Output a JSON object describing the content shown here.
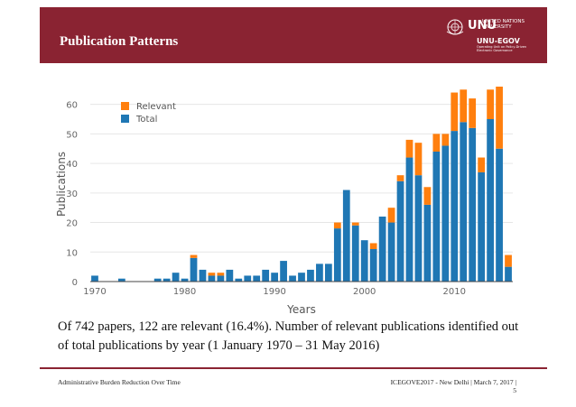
{
  "header": {
    "title": "Publication Patterns",
    "logo": {
      "monogram": "UNU",
      "org_line1": "UNITED NATIONS",
      "org_line2": "UNIVERSITY",
      "unit": "UNU-EGOV",
      "tagline": "Operating Unit on Policy-Driven Electronic Governance"
    }
  },
  "chart_data": {
    "type": "bar",
    "stacked": true,
    "xlabel": "Years",
    "ylabel": "Publications",
    "ylim": [
      0,
      66
    ],
    "yticks": [
      0,
      10,
      20,
      30,
      40,
      50,
      60
    ],
    "xticks": [
      1970,
      1980,
      1990,
      2000,
      2010
    ],
    "xlim": [
      1969.5,
      2016.5
    ],
    "legend": {
      "position": "top-left",
      "entries": [
        "Relevant",
        "Total"
      ]
    },
    "colors": {
      "Relevant": "#ff7f0e",
      "Total": "#1f77b4"
    },
    "x": [
      1970,
      1971,
      1972,
      1973,
      1974,
      1975,
      1976,
      1977,
      1978,
      1979,
      1980,
      1981,
      1982,
      1983,
      1984,
      1985,
      1986,
      1987,
      1988,
      1989,
      1990,
      1991,
      1992,
      1993,
      1994,
      1995,
      1996,
      1997,
      1998,
      1999,
      2000,
      2001,
      2002,
      2003,
      2004,
      2005,
      2006,
      2007,
      2008,
      2009,
      2010,
      2011,
      2012,
      2013,
      2014,
      2015,
      2016
    ],
    "series": [
      {
        "name": "Total",
        "values": [
          2,
          0,
          0,
          1,
          0,
          0,
          0,
          1,
          1,
          3,
          1,
          8,
          4,
          2,
          2,
          4,
          1,
          2,
          2,
          4,
          3,
          7,
          2,
          3,
          4,
          6,
          6,
          18,
          31,
          19,
          14,
          11,
          22,
          20,
          34,
          42,
          36,
          26,
          44,
          46,
          51,
          54,
          52,
          37,
          55,
          45,
          5
        ]
      },
      {
        "name": "Relevant",
        "values": [
          0,
          0,
          0,
          0,
          0,
          0,
          0,
          0,
          0,
          0,
          0,
          1,
          0,
          1,
          1,
          0,
          0,
          0,
          0,
          0,
          0,
          0,
          0,
          0,
          0,
          0,
          0,
          2,
          0,
          1,
          0,
          2,
          0,
          5,
          2,
          6,
          11,
          6,
          6,
          4,
          13,
          11,
          10,
          5,
          10,
          21,
          4
        ]
      }
    ]
  },
  "caption": "Of 742 papers, 122 are relevant (16.4%). Number of relevant publications identified out of total publications by year (1 January 1970 – 31 May 2016)",
  "footer": {
    "left": "Administrative Burden Reduction Over Time",
    "right": "ICEGOVE2017 - New Delhi | March 7, 2017 |",
    "page": "5"
  }
}
